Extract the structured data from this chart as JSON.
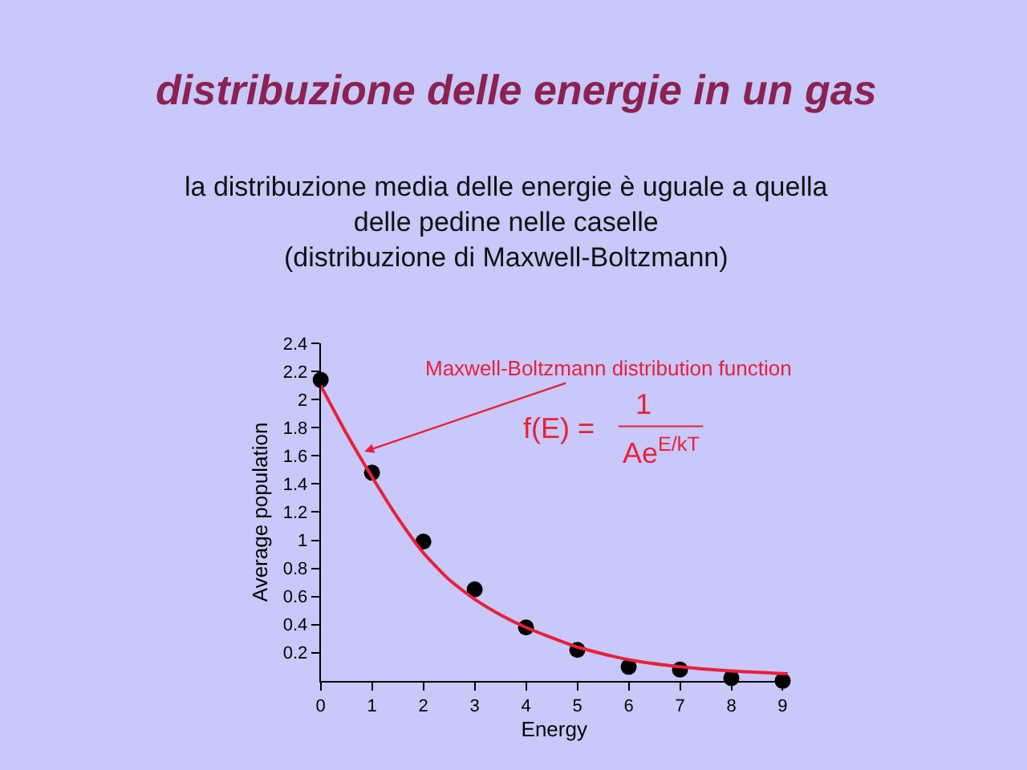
{
  "chart_data": {
    "type": "scatter",
    "title": "distribuzione delle energie in un gas",
    "subtitle": "la distribuzione media delle energie è uguale a quella\ndelle pedine nelle caselle\n(distribuzione di Maxwell-Boltzmann)",
    "xlabel": "Energy",
    "ylabel": "Average population",
    "x": [
      0,
      1,
      2,
      3,
      4,
      5,
      6,
      7,
      8,
      9
    ],
    "series": [
      {
        "color": "#000000",
        "marker": "circle",
        "values": [
          2.14,
          1.48,
          0.99,
          0.65,
          0.38,
          0.22,
          0.1,
          0.08,
          0.02,
          0.0
        ]
      },
      {
        "type": "line",
        "color": "#e8203a",
        "marker": "none",
        "x": [
          0,
          0.5,
          1,
          1.5,
          2,
          2.5,
          3,
          3.5,
          4,
          5,
          6,
          7,
          8,
          9.1
        ],
        "values": [
          2.1,
          1.76,
          1.45,
          1.16,
          0.91,
          0.72,
          0.58,
          0.47,
          0.38,
          0.24,
          0.15,
          0.1,
          0.07,
          0.05
        ]
      }
    ],
    "annotations": [
      {
        "text": "Maxwell-Boltzmann distribution function",
        "x": 0.85,
        "y": 1.63
      },
      "f(E) =",
      "1",
      "Ae$^{E/kT}$"
    ],
    "xlim": [
      0,
      9.1
    ],
    "ylim": [
      0,
      2.4
    ],
    "xticks": [
      0,
      1,
      2,
      3,
      4,
      5,
      6,
      7,
      8,
      9
    ],
    "yticks": [
      0.2,
      0.4,
      0.6,
      0.8,
      1.0,
      1.2,
      1.4,
      1.6,
      1.8,
      2.0,
      2.2,
      2.4
    ],
    "grid": false
  }
}
